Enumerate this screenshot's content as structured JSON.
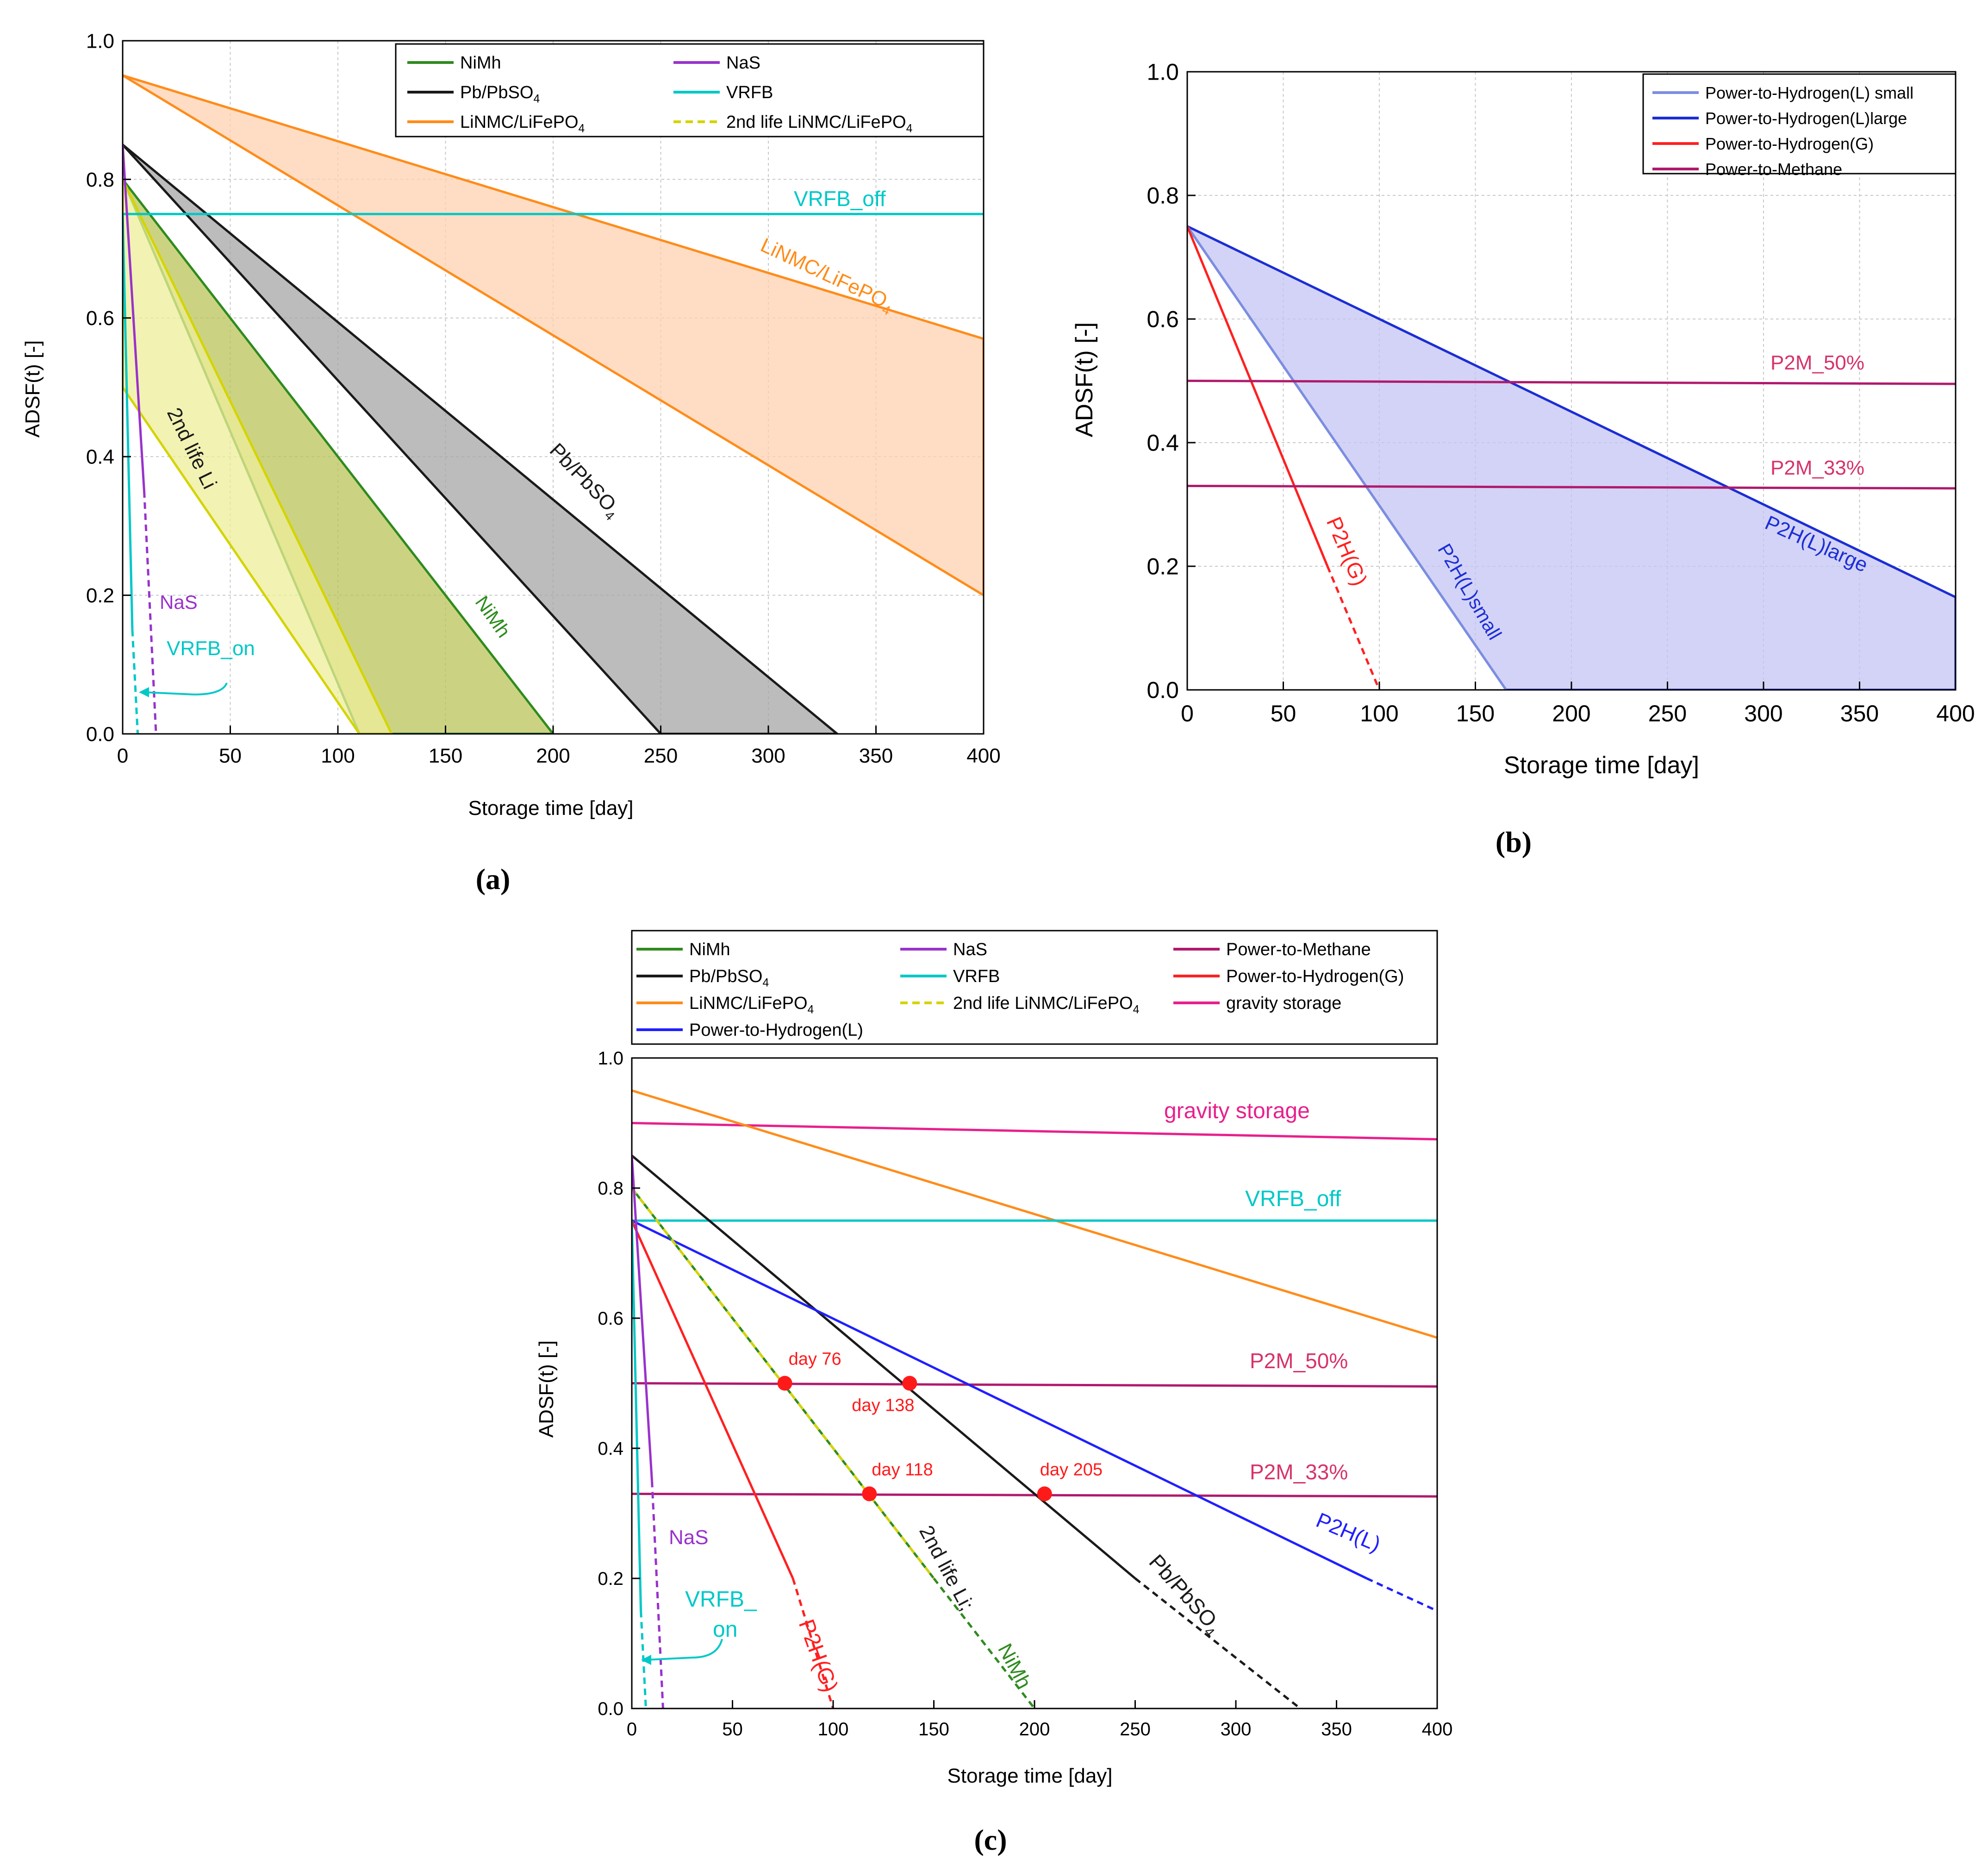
{
  "chart_data": [
    {
      "type": "line",
      "panel_label": "(a)",
      "xlabel": "Storage time [day]",
      "ylabel": "ADSF(t) [-]",
      "xlim": [
        0,
        400
      ],
      "ylim": [
        0,
        1.0
      ],
      "xticks": [
        0,
        50,
        100,
        150,
        200,
        250,
        300,
        350,
        400
      ],
      "yticks": [
        0.0,
        0.2,
        0.4,
        0.6,
        0.8,
        1.0
      ],
      "grid": true,
      "legend_position": "top-right",
      "legend": [
        {
          "label": "NiMh",
          "color": "#2e8b1e",
          "dash": false
        },
        {
          "label": "NaS",
          "color": "#9932cc",
          "dash": false
        },
        {
          "label": "Pb/PbSO4",
          "color": "#1a1a1a",
          "dash": false
        },
        {
          "label": "VRFB",
          "color": "#00c8c8",
          "dash": false
        },
        {
          "label": "LiNMC/LiFePO4",
          "color": "#ff8c1a",
          "dash": false
        },
        {
          "label": "2nd life LiNMC/LiFePO4",
          "color": "#d4d400",
          "dash": true
        }
      ],
      "bands": [
        {
          "name": "LiNMC/LiFePO4",
          "fill": "#ffd1b0",
          "edge": "#ff8c1a",
          "upper": [
            [
              0,
              0.95
            ],
            [
              400,
              0.57
            ]
          ],
          "lower": [
            [
              0,
              0.95
            ],
            [
              400,
              0.2
            ]
          ]
        },
        {
          "name": "Pb/PbSO4",
          "fill": "#a6a6a6",
          "edge": "#1a1a1a",
          "upper": [
            [
              0,
              0.85
            ],
            [
              332,
              0
            ]
          ],
          "lower": [
            [
              0,
              0.85
            ],
            [
              250,
              0
            ]
          ]
        },
        {
          "name": "NiMh",
          "fill": "#b9c45a",
          "edge": "#2e8b1e",
          "upper": [
            [
              0,
              0.8
            ],
            [
              200,
              0
            ]
          ],
          "lower": [
            [
              0,
              0.8
            ],
            [
              110,
              0
            ]
          ]
        },
        {
          "name": "2nd life Li",
          "fill": "#eeee99",
          "edge": "#d4d400",
          "upper": [
            [
              0,
              0.8
            ],
            [
              125,
              0
            ]
          ],
          "lower": [
            [
              0,
              0.5
            ],
            [
              110,
              0
            ]
          ]
        }
      ],
      "series": [
        {
          "name": "VRFB_off",
          "color": "#00c8c8",
          "points": [
            [
              0,
              0.75
            ],
            [
              400,
              0.75
            ]
          ]
        },
        {
          "name": "NaS",
          "color": "#9932cc",
          "points": [
            [
              0,
              0.85
            ],
            [
              10,
              0.35
            ]
          ],
          "dashed_points": [
            [
              10,
              0.35
            ],
            [
              15.5,
              0
            ]
          ]
        },
        {
          "name": "VRFB_on",
          "color": "#00c8c8",
          "points": [
            [
              0,
              0.75
            ],
            [
              4.5,
              0.15
            ]
          ],
          "dashed_points": [
            [
              4.5,
              0.15
            ],
            [
              7,
              0
            ]
          ]
        }
      ],
      "annotations": [
        {
          "text": "VRFB_off",
          "color": "#00c8c8"
        },
        {
          "text": "LiNMC/LiFePO4",
          "color": "#ff8c1a"
        },
        {
          "text": "Pb/PbSO4",
          "color": "#1a1a1a"
        },
        {
          "text": "NiMh",
          "color": "#2e8b1e"
        },
        {
          "text": "2nd life Li",
          "color": "#1a1a1a"
        },
        {
          "text": "NaS",
          "color": "#9932cc"
        },
        {
          "text": "VRFB_on",
          "color": "#00c8c8"
        }
      ]
    },
    {
      "type": "line",
      "panel_label": "(b)",
      "xlabel": "Storage time [day]",
      "ylabel": "ADSF(t) [-]",
      "xlim": [
        0,
        400
      ],
      "ylim": [
        0,
        1.0
      ],
      "xticks": [
        0,
        50,
        100,
        150,
        200,
        250,
        300,
        350,
        400
      ],
      "yticks": [
        0.0,
        0.2,
        0.4,
        0.6,
        0.8,
        1.0
      ],
      "grid": true,
      "legend_position": "top-right",
      "legend": [
        {
          "label": "Power-to-Hydrogen(L) small",
          "color": "#7b8ee0"
        },
        {
          "label": "Power-to-Hydrogen(L)large",
          "color": "#1c2ed4"
        },
        {
          "label": "Power-to-Hydrogen(G)",
          "color": "#ff2020"
        },
        {
          "label": "Power-to-Methane",
          "color": "#b01a6c"
        }
      ],
      "bands": [
        {
          "name": "P2H(L)",
          "fill": "#c4c4f4",
          "edge": "#1c2ed4",
          "upper": [
            [
              0,
              0.75
            ],
            [
              400,
              0.15
            ]
          ],
          "lower": [
            [
              0,
              0.75
            ],
            [
              166,
              0
            ],
            [
              400,
              0
            ]
          ]
        }
      ],
      "series": [
        {
          "name": "P2H(L)large",
          "color": "#1c2ed4",
          "points": [
            [
              0,
              0.75
            ],
            [
              400,
              0.15
            ]
          ]
        },
        {
          "name": "P2H(L)small",
          "color": "#7b8ee0",
          "points": [
            [
              0,
              0.75
            ],
            [
              166,
              0
            ]
          ]
        },
        {
          "name": "P2H(G)",
          "color": "#ff2020",
          "points": [
            [
              0,
              0.75
            ],
            [
              73,
              0.2
            ]
          ],
          "dashed_points": [
            [
              73,
              0.2
            ],
            [
              100,
              0
            ]
          ]
        },
        {
          "name": "P2M_50%",
          "color": "#b01a6c",
          "points": [
            [
              0,
              0.5
            ],
            [
              400,
              0.495
            ]
          ]
        },
        {
          "name": "P2M_33%",
          "color": "#b01a6c",
          "points": [
            [
              0,
              0.33
            ],
            [
              400,
              0.326
            ]
          ]
        }
      ],
      "annotations": [
        {
          "text": "P2M_50%",
          "color": "#d6336c"
        },
        {
          "text": "P2M_33%",
          "color": "#d6336c"
        },
        {
          "text": "P2H(L)large",
          "color": "#1c2ed4"
        },
        {
          "text": "P2H(L)small",
          "color": "#1c2ed4"
        },
        {
          "text": "P2H(G)",
          "color": "#ff2020"
        }
      ]
    },
    {
      "type": "line",
      "panel_label": "(c)",
      "xlabel": "Storage time [day]",
      "ylabel": "ADSF(t) [-]",
      "xlim": [
        0,
        400
      ],
      "ylim": [
        0,
        1.0
      ],
      "xticks": [
        0,
        50,
        100,
        150,
        200,
        250,
        300,
        350,
        400
      ],
      "yticks": [
        0.0,
        0.2,
        0.4,
        0.6,
        0.8,
        1.0
      ],
      "grid": false,
      "legend_position": "top",
      "legend": [
        {
          "label": "NiMh",
          "color": "#2e8b1e",
          "dash": false
        },
        {
          "label": "NaS",
          "color": "#9932cc",
          "dash": false
        },
        {
          "label": "Power-to-Methane",
          "color": "#b01a6c",
          "dash": false
        },
        {
          "label": "Pb/PbSO4",
          "color": "#1a1a1a",
          "dash": false
        },
        {
          "label": "VRFB",
          "color": "#00c8c8",
          "dash": false
        },
        {
          "label": "Power-to-Hydrogen(G)",
          "color": "#ff2020",
          "dash": false
        },
        {
          "label": "LiNMC/LiFePO4",
          "color": "#ff8c1a",
          "dash": false
        },
        {
          "label": "2nd life LiNMC/LiFePO4",
          "color": "#d4d400",
          "dash": true
        },
        {
          "label": "gravity storage",
          "color": "#e8208c",
          "dash": false
        },
        {
          "label": "Power-to-Hydrogen(L)",
          "color": "#2020ff",
          "dash": false
        }
      ],
      "series": [
        {
          "name": "gravity storage",
          "color": "#e8208c",
          "points": [
            [
              0,
              0.9
            ],
            [
              400,
              0.875
            ]
          ]
        },
        {
          "name": "LiNMC/LiFePO4",
          "color": "#ff8c1a",
          "points": [
            [
              0,
              0.95
            ],
            [
              400,
              0.57
            ]
          ]
        },
        {
          "name": "VRFB_off",
          "color": "#00c8c8",
          "points": [
            [
              0,
              0.75
            ],
            [
              400,
              0.75
            ]
          ]
        },
        {
          "name": "P2M_50%",
          "color": "#b01a6c",
          "points": [
            [
              0,
              0.5
            ],
            [
              400,
              0.495
            ]
          ]
        },
        {
          "name": "P2M_33%",
          "color": "#b01a6c",
          "points": [
            [
              0,
              0.33
            ],
            [
              400,
              0.326
            ]
          ]
        },
        {
          "name": "Pb/PbSO4",
          "color": "#1a1a1a",
          "points": [
            [
              0,
              0.85
            ],
            [
              250,
              0.2
            ]
          ],
          "dashed_points": [
            [
              250,
              0.2
            ],
            [
              332,
              0
            ]
          ]
        },
        {
          "name": "P2H(L)",
          "color": "#2020ff",
          "points": [
            [
              0,
              0.75
            ],
            [
              365,
              0.2
            ]
          ],
          "dashed_points": [
            [
              365,
              0.2
            ],
            [
              400,
              0.15
            ]
          ]
        },
        {
          "name": "2nd life Li; NiMh",
          "color": "#2e8b1e",
          "points": [
            [
              0,
              0.8
            ],
            [
              150,
              0.2
            ]
          ],
          "dashed_points": [
            [
              150,
              0.2
            ],
            [
              200,
              0
            ]
          ]
        },
        {
          "name": "2nd life Li overlay",
          "color": "#d4d400",
          "dashed": true,
          "points": [
            [
              0,
              0.8
            ],
            [
              150,
              0.2
            ]
          ]
        },
        {
          "name": "P2H(G)",
          "color": "#ff2020",
          "points": [
            [
              0,
              0.75
            ],
            [
              80,
              0.2
            ]
          ],
          "dashed_points": [
            [
              80,
              0.2
            ],
            [
              100,
              0
            ]
          ]
        },
        {
          "name": "NaS",
          "color": "#9932cc",
          "points": [
            [
              0,
              0.85
            ],
            [
              10,
              0.35
            ]
          ],
          "dashed_points": [
            [
              10,
              0.35
            ],
            [
              15.5,
              0
            ]
          ]
        },
        {
          "name": "VRFB_on",
          "color": "#00c8c8",
          "points": [
            [
              0,
              0.75
            ],
            [
              4.5,
              0.15
            ]
          ],
          "dashed_points": [
            [
              4.5,
              0.15
            ],
            [
              7,
              0
            ]
          ]
        }
      ],
      "markers": [
        {
          "label": "day 76",
          "x": 76,
          "y": 0.5
        },
        {
          "label": "day 138",
          "x": 138,
          "y": 0.5
        },
        {
          "label": "day 118",
          "x": 118,
          "y": 0.33
        },
        {
          "label": "day 205",
          "x": 205,
          "y": 0.33
        }
      ],
      "annotations": [
        {
          "text": "gravity storage",
          "color": "#e8208c"
        },
        {
          "text": "VRFB_off",
          "color": "#00c8c8"
        },
        {
          "text": "P2M_50%",
          "color": "#d6336c"
        },
        {
          "text": "P2M_33%",
          "color": "#d6336c"
        },
        {
          "text": "P2H(L)",
          "color": "#2020ff"
        },
        {
          "text": "Pb/PbSO4",
          "color": "#1a1a1a"
        },
        {
          "text": "2nd life Li;",
          "color": "#1a1a1a"
        },
        {
          "text": "NiMh",
          "color": "#2e8b1e"
        },
        {
          "text": "P2H(G)",
          "color": "#ff2020"
        },
        {
          "text": "NaS",
          "color": "#9932cc"
        },
        {
          "text": "VRFB_",
          "color": "#00c8c8"
        },
        {
          "text": "on",
          "color": "#00c8c8"
        }
      ]
    }
  ]
}
